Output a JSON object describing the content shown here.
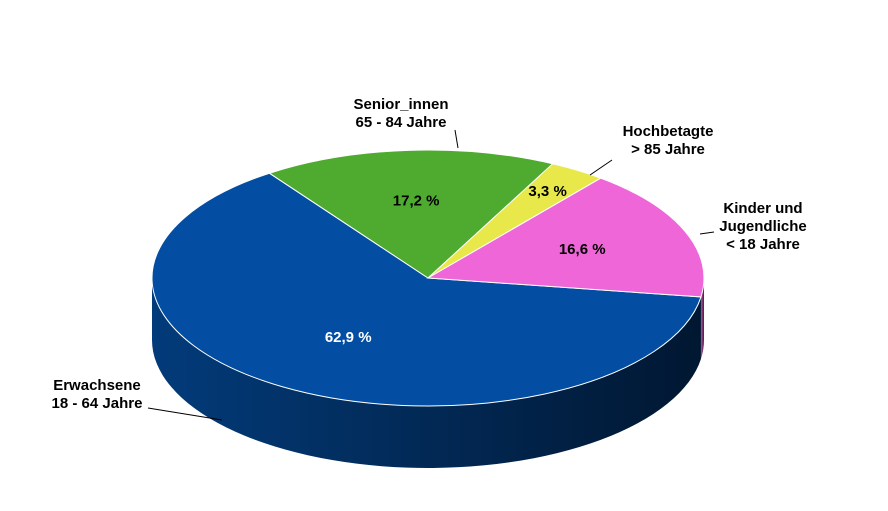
{
  "chart_data": {
    "type": "pie3d",
    "categories": [
      [
        "Erwachsene",
        "18 - 64 Jahre"
      ],
      [
        "Senior_innen",
        "65 - 84 Jahre"
      ],
      [
        "Hochbetagte",
        "> 85 Jahre"
      ],
      [
        "Kinder und",
        "Jugendliche",
        "< 18 Jahre"
      ]
    ],
    "values": [
      62.9,
      17.2,
      3.3,
      16.6
    ],
    "value_labels": [
      "62,9 %",
      "17,2 %",
      "3,3 %",
      "16,6 %"
    ],
    "colors": [
      "#034ea2",
      "#4eab2f",
      "#e8e84a",
      "#ee66d8"
    ]
  }
}
